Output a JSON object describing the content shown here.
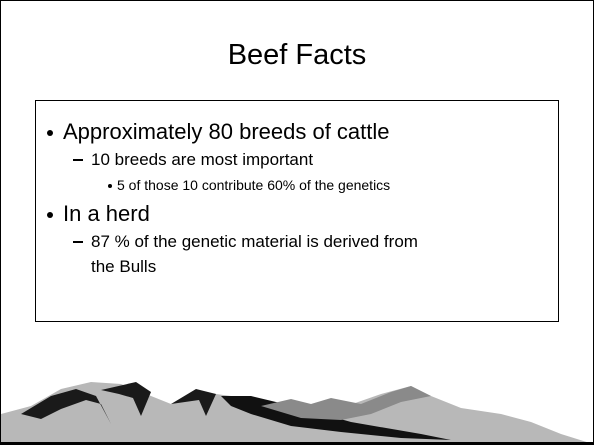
{
  "slide": {
    "title": "Beef Facts",
    "bullets": [
      {
        "text": "Approximately 80 breeds of cattle",
        "sub": [
          {
            "text": "10 breeds are most important",
            "sub": [
              {
                "text": "5 of those 10 contribute 60% of the genetics"
              }
            ]
          }
        ]
      },
      {
        "text": "In a herd",
        "sub": [
          {
            "text": "87 % of the genetic material is derived from the Bulls"
          }
        ]
      }
    ]
  }
}
